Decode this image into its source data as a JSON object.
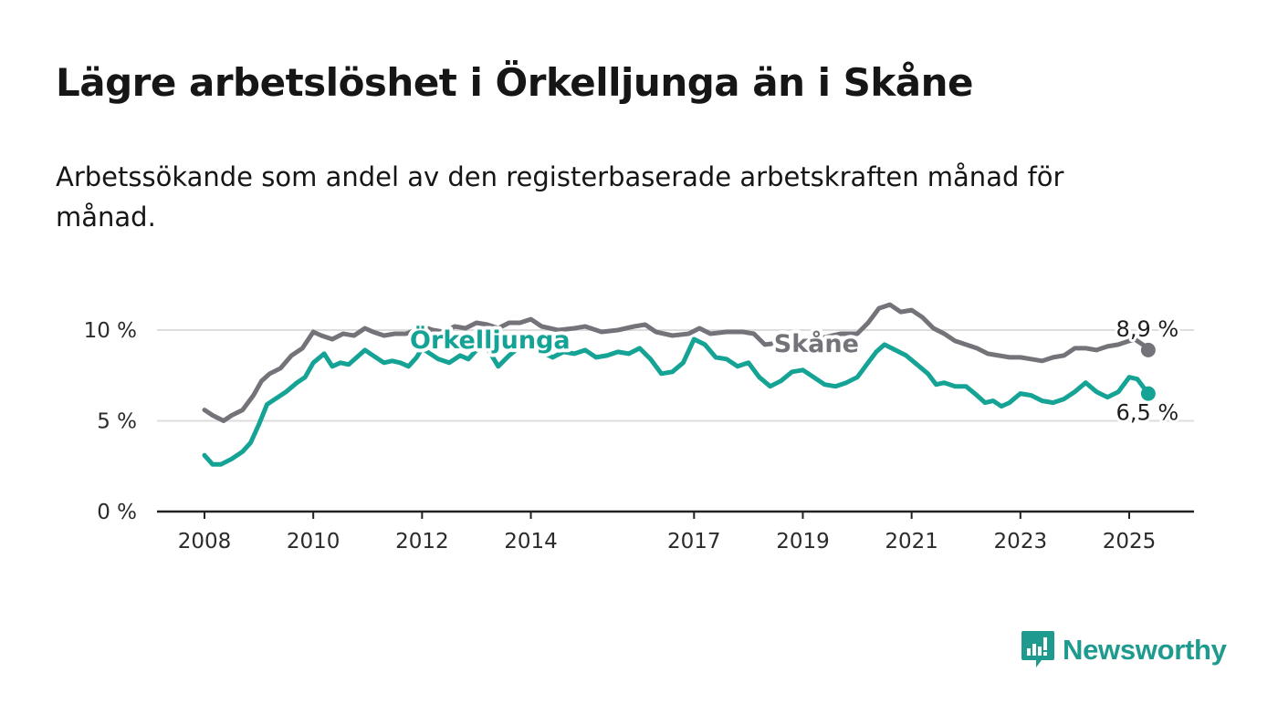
{
  "title": "Lägre arbetslöshet i Örkelljunga än i Skåne",
  "subtitle": "Arbetssökande som andel av den registerbaserade arbetskraften månad för månad.",
  "logo": {
    "text": "Newsworthy",
    "icon": "newsworthy-bar-chart-icon"
  },
  "colors": {
    "orkelljunga": "#14a394",
    "skane": "#747379",
    "grid": "#dddddd",
    "axis": "#222222"
  },
  "chart_data": {
    "type": "line",
    "x_unit": "year",
    "xlim": [
      2007.0,
      2026.2
    ],
    "ylim": [
      0,
      10.5
    ],
    "y_ticks": [
      0,
      5,
      10
    ],
    "y_tick_labels": [
      "0 %",
      "5 %",
      "10 %"
    ],
    "x_ticks": [
      2008,
      2010,
      2012,
      2014,
      2017,
      2019,
      2021,
      2023,
      2025
    ],
    "x_tick_labels": [
      "2008",
      "2010",
      "2012",
      "2014",
      "2017",
      "2019",
      "2021",
      "2023",
      "2025"
    ],
    "grid": "horizontal",
    "legend": "inline labels",
    "series": [
      {
        "name": "Skåne",
        "color": "#747379",
        "end_label": "8,9 %",
        "x": [
          2008.0,
          2008.15,
          2008.35,
          2008.5,
          2008.7,
          2008.9,
          2009.05,
          2009.2,
          2009.4,
          2009.6,
          2009.8,
          2010.0,
          2010.15,
          2010.35,
          2010.55,
          2010.75,
          2010.95,
          2011.1,
          2011.3,
          2011.5,
          2011.7,
          2011.9,
          2012.0,
          2012.2,
          2012.4,
          2012.6,
          2012.8,
          2013.0,
          2013.2,
          2013.4,
          2013.6,
          2013.8,
          2014.0,
          2014.2,
          2014.5,
          2014.8,
          2015.0,
          2015.3,
          2015.6,
          2015.9,
          2016.1,
          2016.3,
          2016.6,
          2016.9,
          2017.1,
          2017.3,
          2017.6,
          2017.9,
          2018.1,
          2018.3,
          2018.6,
          2018.9,
          2019.1,
          2019.4,
          2019.7,
          2020.0,
          2020.2,
          2020.4,
          2020.6,
          2020.8,
          2021.0,
          2021.2,
          2021.4,
          2021.6,
          2021.8,
          2022.0,
          2022.2,
          2022.4,
          2022.6,
          2022.8,
          2023.0,
          2023.2,
          2023.4,
          2023.6,
          2023.8,
          2024.0,
          2024.2,
          2024.4,
          2024.6,
          2024.8,
          2025.0,
          2025.1,
          2025.25,
          2025.35
        ],
        "y": [
          5.6,
          5.3,
          5.0,
          5.3,
          5.6,
          6.4,
          7.2,
          7.6,
          7.9,
          8.6,
          9.0,
          9.9,
          9.7,
          9.5,
          9.8,
          9.7,
          10.1,
          9.9,
          9.7,
          9.8,
          9.8,
          10.0,
          10.2,
          10.0,
          9.9,
          10.2,
          10.1,
          10.4,
          10.3,
          10.1,
          10.4,
          10.4,
          10.6,
          10.2,
          10.0,
          10.1,
          10.2,
          9.9,
          10.0,
          10.2,
          10.3,
          9.9,
          9.7,
          9.8,
          10.1,
          9.8,
          9.9,
          9.9,
          9.8,
          9.2,
          9.3,
          9.4,
          9.6,
          9.6,
          9.8,
          9.8,
          10.4,
          11.2,
          11.4,
          11.0,
          11.1,
          10.7,
          10.1,
          9.8,
          9.4,
          9.2,
          9.0,
          8.7,
          8.6,
          8.5,
          8.5,
          8.4,
          8.3,
          8.5,
          8.6,
          9.0,
          9.0,
          8.9,
          9.1,
          9.2,
          9.4,
          9.5,
          9.2,
          8.9
        ]
      },
      {
        "name": "Örkelljunga",
        "color": "#14a394",
        "end_label": "6,5 %",
        "x": [
          2008.0,
          2008.15,
          2008.3,
          2008.5,
          2008.7,
          2008.85,
          2009.0,
          2009.15,
          2009.3,
          2009.5,
          2009.7,
          2009.85,
          2010.0,
          2010.2,
          2010.35,
          2010.5,
          2010.65,
          2010.8,
          2010.95,
          2011.1,
          2011.3,
          2011.45,
          2011.6,
          2011.75,
          2011.9,
          2012.0,
          2012.15,
          2012.3,
          2012.5,
          2012.7,
          2012.85,
          2013.0,
          2013.2,
          2013.4,
          2013.6,
          2013.8,
          2014.0,
          2014.2,
          2014.4,
          2014.6,
          2014.8,
          2015.0,
          2015.2,
          2015.4,
          2015.6,
          2015.8,
          2016.0,
          2016.2,
          2016.4,
          2016.6,
          2016.8,
          2017.0,
          2017.2,
          2017.4,
          2017.6,
          2017.8,
          2018.0,
          2018.2,
          2018.4,
          2018.6,
          2018.8,
          2019.0,
          2019.2,
          2019.4,
          2019.6,
          2019.8,
          2020.0,
          2020.2,
          2020.35,
          2020.5,
          2020.7,
          2020.9,
          2021.1,
          2021.3,
          2021.45,
          2021.6,
          2021.8,
          2022.0,
          2022.2,
          2022.35,
          2022.5,
          2022.65,
          2022.8,
          2023.0,
          2023.2,
          2023.4,
          2023.6,
          2023.8,
          2024.0,
          2024.2,
          2024.4,
          2024.6,
          2024.8,
          2025.0,
          2025.15,
          2025.3,
          2025.35
        ],
        "y": [
          3.1,
          2.6,
          2.6,
          2.9,
          3.3,
          3.8,
          4.8,
          5.9,
          6.2,
          6.6,
          7.1,
          7.4,
          8.2,
          8.7,
          8.0,
          8.2,
          8.1,
          8.5,
          8.9,
          8.6,
          8.2,
          8.3,
          8.2,
          8.0,
          8.5,
          9.0,
          8.7,
          8.4,
          8.2,
          8.6,
          8.4,
          8.9,
          9.0,
          8.0,
          8.6,
          9.1,
          9.1,
          8.8,
          8.5,
          8.8,
          8.7,
          8.9,
          8.5,
          8.6,
          8.8,
          8.7,
          9.0,
          8.4,
          7.6,
          7.7,
          8.2,
          9.5,
          9.2,
          8.5,
          8.4,
          8.0,
          8.2,
          7.4,
          6.9,
          7.2,
          7.7,
          7.8,
          7.4,
          7.0,
          6.9,
          7.1,
          7.4,
          8.2,
          8.8,
          9.2,
          8.9,
          8.6,
          8.1,
          7.6,
          7.0,
          7.1,
          6.9,
          6.9,
          6.4,
          6.0,
          6.1,
          5.8,
          6.0,
          6.5,
          6.4,
          6.1,
          6.0,
          6.2,
          6.6,
          7.1,
          6.6,
          6.3,
          6.6,
          7.4,
          7.3,
          6.7,
          6.5
        ]
      }
    ],
    "annotations": [
      {
        "text": "Skåne",
        "series": "Skåne",
        "x": 2019.25,
        "y": 9.3
      },
      {
        "text": "Örkelljunga",
        "series": "Örkelljunga",
        "x": 2013.25,
        "y": 9.5
      }
    ]
  }
}
